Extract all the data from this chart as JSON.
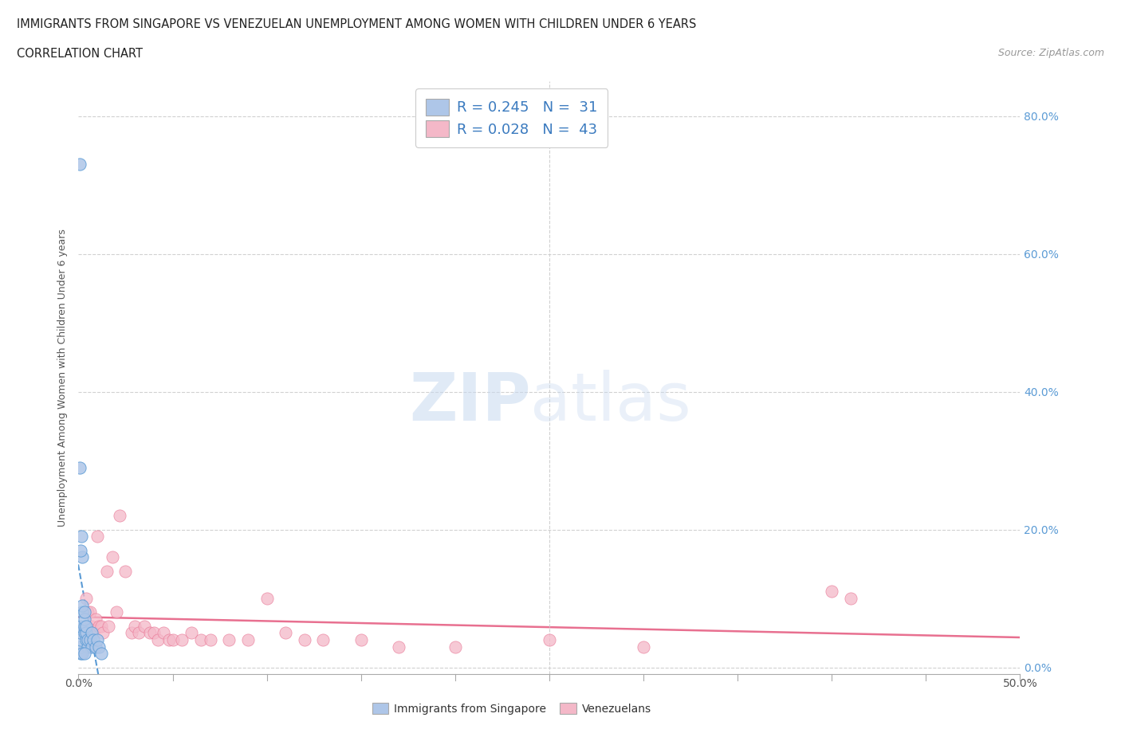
{
  "title1": "IMMIGRANTS FROM SINGAPORE VS VENEZUELAN UNEMPLOYMENT AMONG WOMEN WITH CHILDREN UNDER 6 YEARS",
  "title2": "CORRELATION CHART",
  "source": "Source: ZipAtlas.com",
  "xlim": [
    0.0,
    0.5
  ],
  "ylim": [
    -0.01,
    0.85
  ],
  "color_blue": "#aec6e8",
  "color_blue_dark": "#5b9bd5",
  "color_pink": "#f4b8c8",
  "color_pink_dark": "#e87090",
  "color_trendline_blue": "#5b9bd5",
  "color_trendline_pink": "#e87090",
  "sg_x": [
    0.0005,
    0.001,
    0.001,
    0.001,
    0.001,
    0.001,
    0.0015,
    0.002,
    0.002,
    0.002,
    0.003,
    0.003,
    0.003,
    0.003,
    0.004,
    0.004,
    0.004,
    0.005,
    0.005,
    0.006,
    0.007,
    0.007,
    0.008,
    0.009,
    0.01,
    0.011,
    0.012,
    0.0005,
    0.001,
    0.002,
    0.003
  ],
  "sg_y": [
    0.73,
    0.02,
    0.03,
    0.04,
    0.05,
    0.06,
    0.19,
    0.08,
    0.09,
    0.16,
    0.05,
    0.06,
    0.07,
    0.08,
    0.04,
    0.05,
    0.06,
    0.03,
    0.04,
    0.04,
    0.03,
    0.05,
    0.04,
    0.03,
    0.04,
    0.03,
    0.02,
    0.29,
    0.17,
    0.02,
    0.02
  ],
  "vz_x": [
    0.004,
    0.005,
    0.006,
    0.007,
    0.008,
    0.009,
    0.01,
    0.011,
    0.012,
    0.013,
    0.015,
    0.016,
    0.018,
    0.02,
    0.022,
    0.025,
    0.028,
    0.03,
    0.032,
    0.035,
    0.038,
    0.04,
    0.042,
    0.045,
    0.048,
    0.05,
    0.055,
    0.06,
    0.065,
    0.07,
    0.08,
    0.09,
    0.1,
    0.11,
    0.12,
    0.13,
    0.15,
    0.17,
    0.2,
    0.25,
    0.3,
    0.4,
    0.41
  ],
  "vz_y": [
    0.1,
    0.08,
    0.08,
    0.06,
    0.05,
    0.07,
    0.19,
    0.06,
    0.06,
    0.05,
    0.14,
    0.06,
    0.16,
    0.08,
    0.22,
    0.14,
    0.05,
    0.06,
    0.05,
    0.06,
    0.05,
    0.05,
    0.04,
    0.05,
    0.04,
    0.04,
    0.04,
    0.05,
    0.04,
    0.04,
    0.04,
    0.04,
    0.1,
    0.05,
    0.04,
    0.04,
    0.04,
    0.03,
    0.03,
    0.04,
    0.03,
    0.11,
    0.1
  ]
}
